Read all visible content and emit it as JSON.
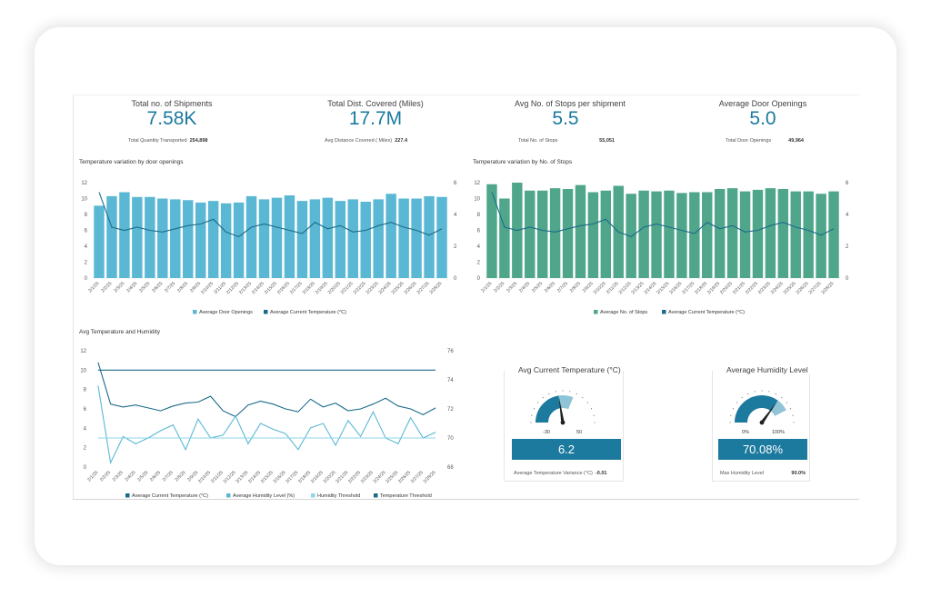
{
  "kpis": [
    {
      "title": "Total no. of Shipments",
      "value": "7.58K",
      "sub_label": "Total Quantity Transported",
      "sub_value": "254,898"
    },
    {
      "title": "Total Dist. Covered (Miles)",
      "value": "17.7M",
      "sub_label": "Avg Distance  Covered ( Miles)",
      "sub_value": "227.4"
    },
    {
      "title": "Avg No. of Stops per shipment",
      "value": "5.5",
      "sub_label": "Total No. of Stops",
      "sub_value": "55,051"
    },
    {
      "title": "Average Door Openings",
      "value": "5.0",
      "sub_label": "Total Door Openings",
      "sub_value": "49,964"
    }
  ],
  "colors": {
    "accent": "#1b7a9e",
    "door_bar": "#5bb8d4",
    "stops_bar": "#4fa68a",
    "line_dark": "#1c6b8a",
    "humidity": "#5bb8d4",
    "hum_threshold": "#8ed6ea",
    "temp_threshold": "#1c6b8a"
  },
  "charts": {
    "door": {
      "title": "Temperature variation by door openings"
    },
    "stops": {
      "title": "Temperature variation by No. of Stops"
    },
    "temp_hum": {
      "title": "Avg Temperature and Humidity"
    }
  },
  "chart_data": [
    {
      "type": "bar",
      "title": "Temperature variation by door openings",
      "categories": [
        "2/1/25",
        "2/2/25",
        "2/3/25",
        "2/4/25",
        "2/5/25",
        "2/6/25",
        "2/7/25",
        "2/8/25",
        "2/9/25",
        "2/10/25",
        "2/11/25",
        "2/12/25",
        "2/13/25",
        "2/14/25",
        "2/15/25",
        "2/16/25",
        "2/17/25",
        "2/18/25",
        "2/19/25",
        "2/20/25",
        "2/21/25",
        "2/22/25",
        "2/23/25",
        "2/24/25",
        "2/25/25",
        "2/26/25",
        "2/27/25",
        "2/28/25"
      ],
      "ylim": [
        0,
        12
      ],
      "y2lim": [
        0,
        6
      ],
      "yticks": [
        0,
        2,
        4,
        6,
        8,
        10,
        12
      ],
      "y2ticks": [
        0,
        2,
        4,
        6
      ],
      "series": [
        {
          "name": "Average Door Openings",
          "type": "bar",
          "axis": "left",
          "values": [
            9.1,
            10.3,
            10.8,
            10.2,
            10.2,
            10.0,
            9.9,
            9.8,
            9.5,
            9.7,
            9.4,
            9.5,
            10.3,
            9.9,
            10.1,
            10.4,
            9.7,
            9.9,
            10.1,
            9.7,
            9.9,
            9.6,
            9.9,
            10.6,
            10.0,
            10.0,
            10.3,
            10.2
          ]
        },
        {
          "name": "Average Current Temperature (°C)",
          "type": "line",
          "axis": "right",
          "values": [
            5.4,
            3.2,
            3.0,
            3.2,
            3.0,
            2.9,
            3.1,
            3.3,
            3.4,
            3.7,
            2.9,
            2.6,
            3.2,
            3.4,
            3.2,
            3.0,
            2.8,
            3.5,
            3.1,
            3.3,
            2.9,
            3.0,
            3.3,
            3.5,
            3.2,
            3.0,
            2.7,
            3.1
          ]
        }
      ],
      "legend": "bottom"
    },
    {
      "type": "bar",
      "title": "Temperature variation by No. of Stops",
      "categories": [
        "2/1/25",
        "2/2/25",
        "2/3/25",
        "2/4/25",
        "2/5/25",
        "2/6/25",
        "2/7/25",
        "2/8/25",
        "2/9/25",
        "2/10/25",
        "2/11/25",
        "2/12/25",
        "2/13/25",
        "2/14/25",
        "2/15/25",
        "2/16/25",
        "2/17/25",
        "2/18/25",
        "2/19/25",
        "2/20/25",
        "2/21/25",
        "2/22/25",
        "2/23/25",
        "2/24/25",
        "2/25/25",
        "2/26/25",
        "2/27/25",
        "2/28/25"
      ],
      "ylim": [
        0,
        12
      ],
      "y2lim": [
        0,
        6
      ],
      "yticks": [
        0,
        2,
        4,
        6,
        8,
        10,
        12
      ],
      "y2ticks": [
        0,
        2,
        4,
        6
      ],
      "series": [
        {
          "name": "Average No. of Stops",
          "type": "bar",
          "axis": "left",
          "values": [
            11.8,
            10.0,
            12.0,
            11.0,
            11.0,
            11.3,
            11.2,
            11.7,
            10.8,
            11.0,
            11.6,
            10.6,
            11.0,
            10.9,
            11.0,
            10.7,
            10.8,
            10.8,
            11.2,
            11.3,
            10.9,
            11.1,
            11.3,
            11.2,
            10.9,
            10.9,
            10.6,
            10.9
          ]
        },
        {
          "name": "Average Current Temperature (°C)",
          "type": "line",
          "axis": "right",
          "values": [
            5.4,
            3.2,
            3.0,
            3.2,
            3.0,
            2.9,
            3.1,
            3.3,
            3.4,
            3.7,
            2.9,
            2.6,
            3.2,
            3.4,
            3.2,
            3.0,
            2.8,
            3.5,
            3.1,
            3.3,
            2.9,
            3.0,
            3.3,
            3.5,
            3.2,
            3.0,
            2.7,
            3.1
          ]
        }
      ],
      "legend": "bottom"
    },
    {
      "type": "line",
      "title": "Avg Temperature and Humidity",
      "categories": [
        "2/1/25",
        "2/2/25",
        "2/3/25",
        "2/4/25",
        "2/5/25",
        "2/6/25",
        "2/7/25",
        "2/8/25",
        "2/9/25",
        "2/10/25",
        "2/11/25",
        "2/12/25",
        "2/13/25",
        "2/14/25",
        "2/15/25",
        "2/16/25",
        "2/17/25",
        "2/18/25",
        "2/19/25",
        "2/20/25",
        "2/21/25",
        "2/22/25",
        "2/23/25",
        "2/24/25",
        "2/25/25",
        "2/26/25",
        "2/27/25",
        "2/28/25"
      ],
      "ylim": [
        0,
        12
      ],
      "y2lim": [
        68,
        76
      ],
      "yticks": [
        0,
        2,
        4,
        6,
        8,
        10,
        12
      ],
      "y2ticks": [
        68,
        70,
        72,
        74,
        76
      ],
      "series": [
        {
          "name": "Average Current Temperature (°C)",
          "axis": "left",
          "values": [
            10.8,
            6.5,
            6.2,
            6.4,
            6.1,
            5.8,
            6.3,
            6.6,
            6.7,
            7.3,
            5.8,
            5.2,
            6.4,
            6.8,
            6.5,
            6.0,
            5.7,
            7.0,
            6.2,
            6.6,
            5.8,
            6.0,
            6.5,
            7.1,
            6.3,
            6.0,
            5.4,
            6.1
          ]
        },
        {
          "name": "Average Humidity Level (%)",
          "axis": "right",
          "values": [
            73.6,
            68.3,
            70.1,
            69.6,
            70.0,
            70.5,
            70.9,
            69.2,
            71.3,
            70.0,
            70.2,
            71.5,
            69.6,
            71.0,
            70.6,
            70.3,
            69.2,
            70.7,
            71.0,
            69.5,
            71.2,
            70.1,
            71.8,
            70.0,
            69.6,
            71.4,
            70.0,
            70.4
          ]
        },
        {
          "name": "Humidity Threshold",
          "axis": "right",
          "values": [
            70,
            70,
            70,
            70,
            70,
            70,
            70,
            70,
            70,
            70,
            70,
            70,
            70,
            70,
            70,
            70,
            70,
            70,
            70,
            70,
            70,
            70,
            70,
            70,
            70,
            70,
            70,
            70
          ]
        },
        {
          "name": "Temperature Threshold",
          "axis": "left",
          "values": [
            10,
            10,
            10,
            10,
            10,
            10,
            10,
            10,
            10,
            10,
            10,
            10,
            10,
            10,
            10,
            10,
            10,
            10,
            10,
            10,
            10,
            10,
            10,
            10,
            10,
            10,
            10,
            10
          ]
        }
      ],
      "legend": "bottom"
    }
  ],
  "gauges": [
    {
      "title": "Avg Current  Temperature (°C)",
      "value": "6.2",
      "min_label": "-30",
      "max_label": "50",
      "min": -30,
      "max": 50,
      "value_num": 6.2,
      "target_num": 20,
      "sub_label": "Average Temperature Variance (°C)",
      "sub_value": "-0.01"
    },
    {
      "title": "Average Humidity Level",
      "value": "70.08%",
      "min_label": "0%",
      "max_label": "100%",
      "min": 0,
      "max": 100,
      "value_num": 70.08,
      "target_num": 85,
      "sub_label": "Max Humidity Level",
      "sub_value": "90.0%"
    }
  ]
}
